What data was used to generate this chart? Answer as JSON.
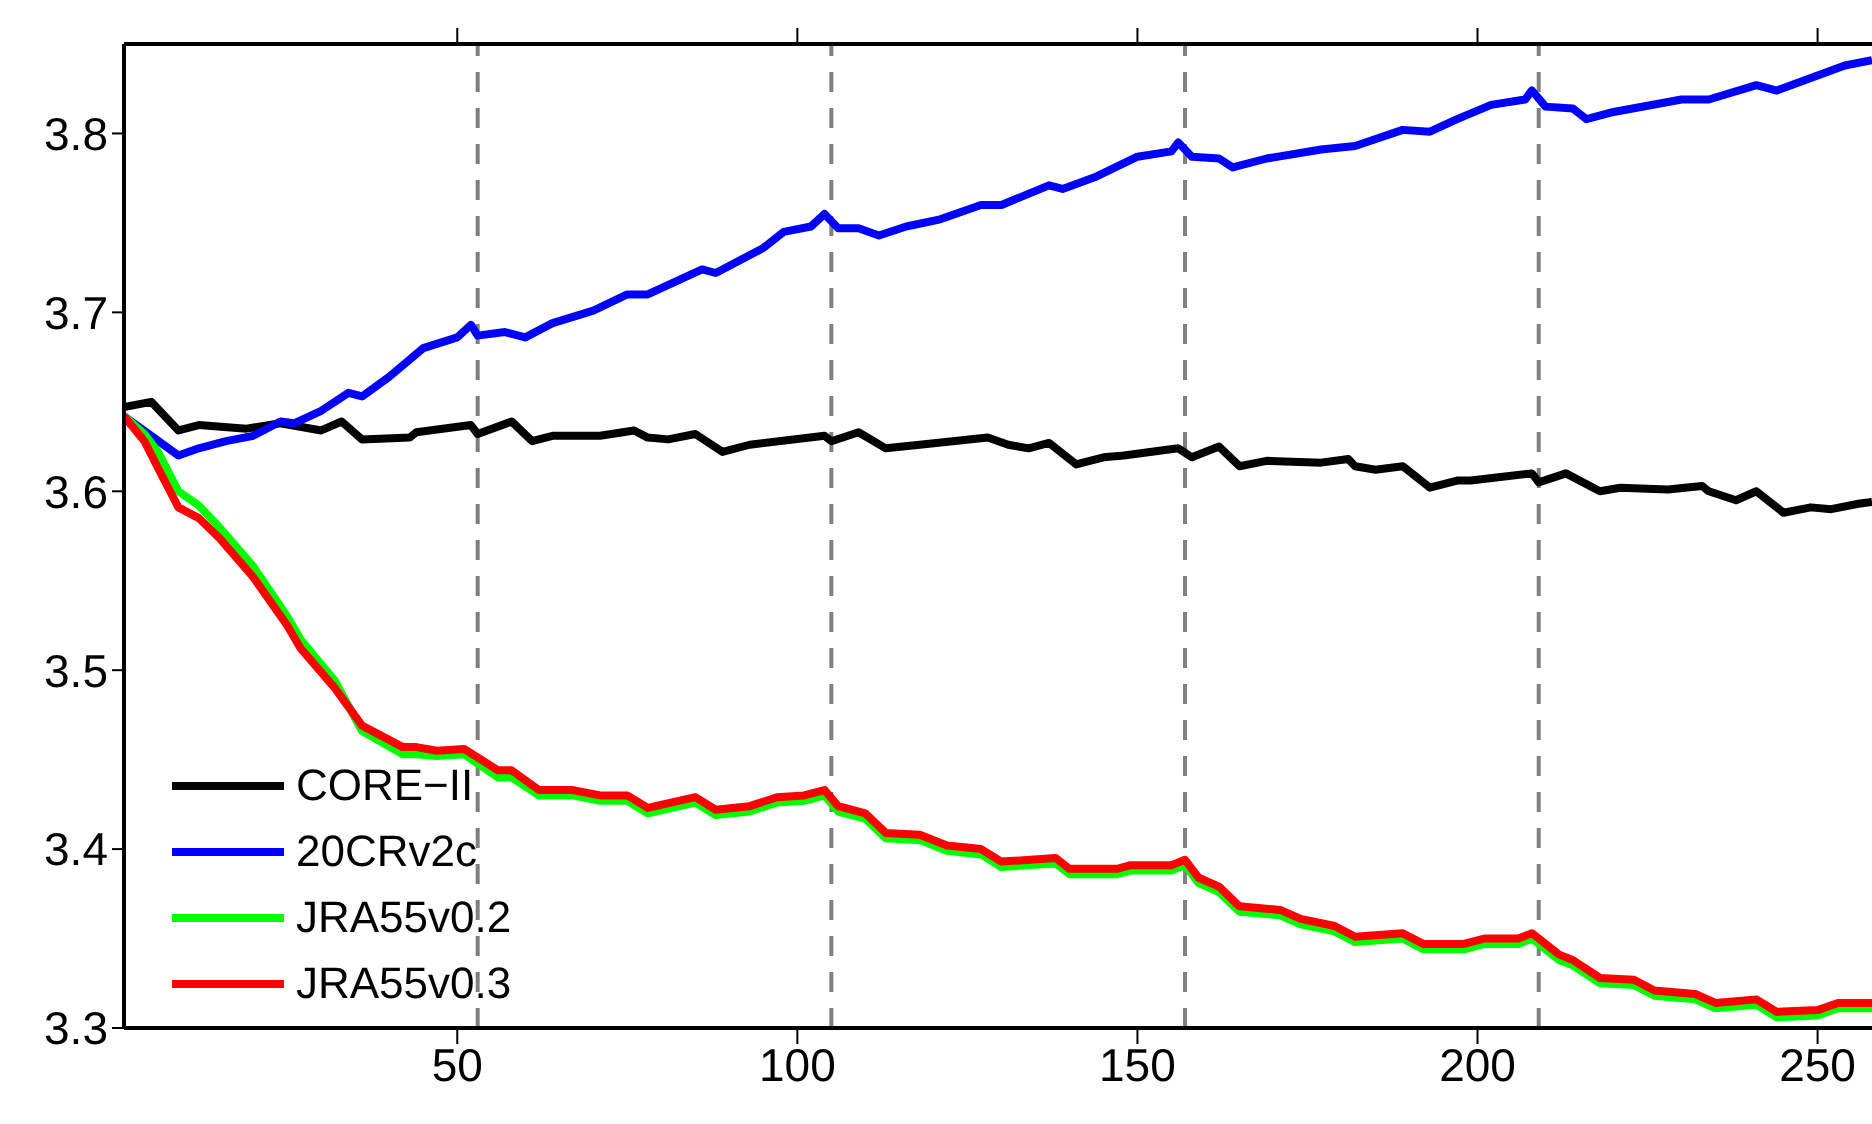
{
  "chart_data": {
    "type": "line",
    "xlim": [
      1,
      258
    ],
    "xticks": [
      50,
      100,
      150,
      200,
      250
    ],
    "ylim": [
      3.3,
      3.85
    ],
    "yticks": [
      3.3,
      3.4,
      3.5,
      3.6,
      3.7,
      3.8
    ],
    "grid": false,
    "legend": "bottom left",
    "marker": "none",
    "line_style": "solid",
    "ref_lines": [
      {
        "axis": "x",
        "value": 53,
        "color": "#808080",
        "line_style": "dashed"
      },
      {
        "axis": "x",
        "value": 105,
        "color": "#808080",
        "line_style": "dashed"
      },
      {
        "axis": "x",
        "value": 157,
        "color": "#808080",
        "line_style": "dashed"
      },
      {
        "axis": "x",
        "value": 209,
        "color": "#808080",
        "line_style": "dashed"
      }
    ],
    "series": [
      {
        "name": "CORE−II",
        "color": "#000000",
        "x": [
          1,
          5,
          9,
          12,
          19,
          24,
          30,
          33,
          36,
          43,
          44,
          52,
          53,
          58,
          61,
          64,
          71,
          76,
          78,
          81,
          85,
          89,
          93,
          104,
          105,
          109,
          113,
          118,
          128,
          131,
          134,
          137,
          141,
          145,
          148,
          156,
          158,
          162,
          165,
          169,
          177,
          181,
          182,
          185,
          189,
          193,
          197,
          199,
          208,
          209,
          213,
          218,
          221,
          228,
          233,
          234,
          238,
          241,
          245,
          249,
          252,
          256,
          258
        ],
        "values": [
          3.647,
          3.65,
          3.634,
          3.637,
          3.635,
          3.638,
          3.634,
          3.639,
          3.629,
          3.63,
          3.633,
          3.637,
          3.632,
          3.639,
          3.628,
          3.631,
          3.631,
          3.634,
          3.63,
          3.629,
          3.632,
          3.622,
          3.626,
          3.631,
          3.628,
          3.633,
          3.624,
          3.626,
          3.63,
          3.626,
          3.624,
          3.627,
          3.615,
          3.619,
          3.62,
          3.624,
          3.619,
          3.625,
          3.614,
          3.617,
          3.616,
          3.618,
          3.614,
          3.612,
          3.614,
          3.602,
          3.606,
          3.606,
          3.61,
          3.605,
          3.61,
          3.6,
          3.602,
          3.601,
          3.603,
          3.6,
          3.595,
          3.6,
          3.588,
          3.591,
          3.59,
          3.593,
          3.594
        ]
      },
      {
        "name": "20CRv2c",
        "color": "#0000ff",
        "x": [
          1,
          5,
          9,
          12,
          16,
          20,
          24,
          26,
          30,
          34,
          36,
          40,
          45,
          50,
          52,
          53,
          57,
          60,
          64,
          70,
          75,
          78,
          86,
          88,
          95,
          98,
          102,
          104,
          106,
          109,
          112,
          116,
          121,
          127,
          130,
          137,
          139,
          144,
          150,
          155,
          156,
          158,
          162,
          164,
          169,
          177,
          182,
          189,
          193,
          197,
          202,
          207,
          208,
          210,
          214,
          216,
          220,
          230,
          234,
          241,
          244,
          249,
          254,
          258
        ],
        "values": [
          3.642,
          3.631,
          3.62,
          3.624,
          3.628,
          3.631,
          3.639,
          3.638,
          3.645,
          3.655,
          3.653,
          3.664,
          3.68,
          3.686,
          3.693,
          3.687,
          3.689,
          3.686,
          3.694,
          3.701,
          3.71,
          3.71,
          3.724,
          3.722,
          3.736,
          3.745,
          3.748,
          3.755,
          3.747,
          3.747,
          3.743,
          3.748,
          3.752,
          3.76,
          3.76,
          3.771,
          3.769,
          3.776,
          3.787,
          3.79,
          3.795,
          3.787,
          3.786,
          3.781,
          3.786,
          3.791,
          3.793,
          3.802,
          3.801,
          3.808,
          3.816,
          3.819,
          3.824,
          3.815,
          3.814,
          3.808,
          3.812,
          3.819,
          3.819,
          3.827,
          3.824,
          3.831,
          3.838,
          3.841
        ]
      },
      {
        "name": "JRA55v0.2",
        "color": "#00ff00",
        "x": [
          1,
          4,
          6,
          9,
          12,
          15,
          20,
          25,
          27,
          32,
          36,
          42,
          44,
          47,
          51,
          56,
          58,
          62,
          67,
          71,
          75,
          78,
          85,
          88,
          93,
          97,
          101,
          104,
          106,
          110,
          113,
          118,
          122,
          127,
          130,
          138,
          140,
          147,
          149,
          155,
          157,
          159,
          162,
          165,
          171,
          174,
          179,
          182,
          189,
          192,
          198,
          201,
          206,
          208,
          212,
          214,
          218,
          223,
          226,
          232,
          235,
          241,
          244,
          250,
          253,
          258
        ],
        "values": [
          3.642,
          3.632,
          3.622,
          3.6,
          3.592,
          3.58,
          3.558,
          3.53,
          3.517,
          3.494,
          3.466,
          3.453,
          3.453,
          3.452,
          3.453,
          3.44,
          3.44,
          3.43,
          3.43,
          3.427,
          3.427,
          3.42,
          3.426,
          3.419,
          3.421,
          3.426,
          3.427,
          3.43,
          3.421,
          3.417,
          3.406,
          3.405,
          3.399,
          3.397,
          3.39,
          3.392,
          3.386,
          3.386,
          3.388,
          3.388,
          3.391,
          3.381,
          3.376,
          3.365,
          3.363,
          3.358,
          3.354,
          3.348,
          3.35,
          3.344,
          3.344,
          3.347,
          3.347,
          3.35,
          3.338,
          3.335,
          3.325,
          3.324,
          3.318,
          3.316,
          3.311,
          3.313,
          3.306,
          3.307,
          3.311,
          3.311
        ]
      },
      {
        "name": "JRA55v0.3",
        "color": "#ff0000",
        "x": [
          1,
          4,
          6,
          9,
          12,
          15,
          20,
          25,
          27,
          32,
          36,
          42,
          44,
          47,
          51,
          56,
          58,
          62,
          67,
          71,
          75,
          78,
          85,
          88,
          93,
          97,
          101,
          104,
          106,
          110,
          113,
          118,
          122,
          127,
          130,
          138,
          140,
          147,
          149,
          155,
          157,
          159,
          162,
          165,
          171,
          174,
          179,
          182,
          189,
          192,
          198,
          201,
          206,
          208,
          212,
          214,
          218,
          223,
          226,
          232,
          235,
          241,
          244,
          250,
          253,
          258
        ],
        "values": [
          3.642,
          3.628,
          3.613,
          3.591,
          3.585,
          3.574,
          3.552,
          3.525,
          3.512,
          3.49,
          3.469,
          3.457,
          3.457,
          3.455,
          3.456,
          3.444,
          3.444,
          3.433,
          3.433,
          3.43,
          3.43,
          3.423,
          3.429,
          3.422,
          3.424,
          3.429,
          3.43,
          3.433,
          3.424,
          3.42,
          3.409,
          3.408,
          3.402,
          3.4,
          3.393,
          3.395,
          3.389,
          3.389,
          3.391,
          3.391,
          3.394,
          3.384,
          3.379,
          3.368,
          3.366,
          3.361,
          3.357,
          3.351,
          3.353,
          3.347,
          3.347,
          3.35,
          3.35,
          3.353,
          3.341,
          3.338,
          3.328,
          3.327,
          3.321,
          3.319,
          3.314,
          3.316,
          3.309,
          3.31,
          3.314,
          3.314
        ]
      }
    ]
  }
}
